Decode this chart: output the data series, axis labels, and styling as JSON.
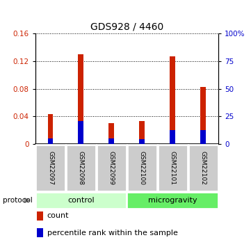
{
  "title": "GDS928 / 4460",
  "samples": [
    "GSM22097",
    "GSM22098",
    "GSM22099",
    "GSM22100",
    "GSM22101",
    "GSM22102"
  ],
  "count_values": [
    0.043,
    0.13,
    0.03,
    0.033,
    0.127,
    0.083
  ],
  "percentile_values": [
    0.008,
    0.033,
    0.008,
    0.007,
    0.02,
    0.02
  ],
  "ylim_left": [
    0,
    0.16
  ],
  "ylim_right": [
    0,
    100
  ],
  "yticks_left": [
    0,
    0.04,
    0.08,
    0.12,
    0.16
  ],
  "ytick_labels_left": [
    "0",
    "0.04",
    "0.08",
    "0.12",
    "0.16"
  ],
  "yticks_right": [
    0,
    25,
    50,
    75,
    100
  ],
  "ytick_labels_right": [
    "0",
    "25",
    "50",
    "75",
    "100%"
  ],
  "groups": [
    {
      "label": "control",
      "start": 0,
      "end": 3,
      "color": "#ccffcc"
    },
    {
      "label": "microgravity",
      "start": 3,
      "end": 6,
      "color": "#66ee66"
    }
  ],
  "protocol_label": "protocol",
  "bar_color_count": "#cc2200",
  "bar_color_percentile": "#0000cc",
  "bar_width": 0.18,
  "legend_count_label": "count",
  "legend_percentile_label": "percentile rank within the sample",
  "title_fontsize": 10,
  "tick_label_color_left": "#cc2200",
  "tick_label_color_right": "#0000cc",
  "sample_box_color": "#cccccc",
  "x_positions": [
    0,
    1,
    2,
    3,
    4,
    5
  ]
}
